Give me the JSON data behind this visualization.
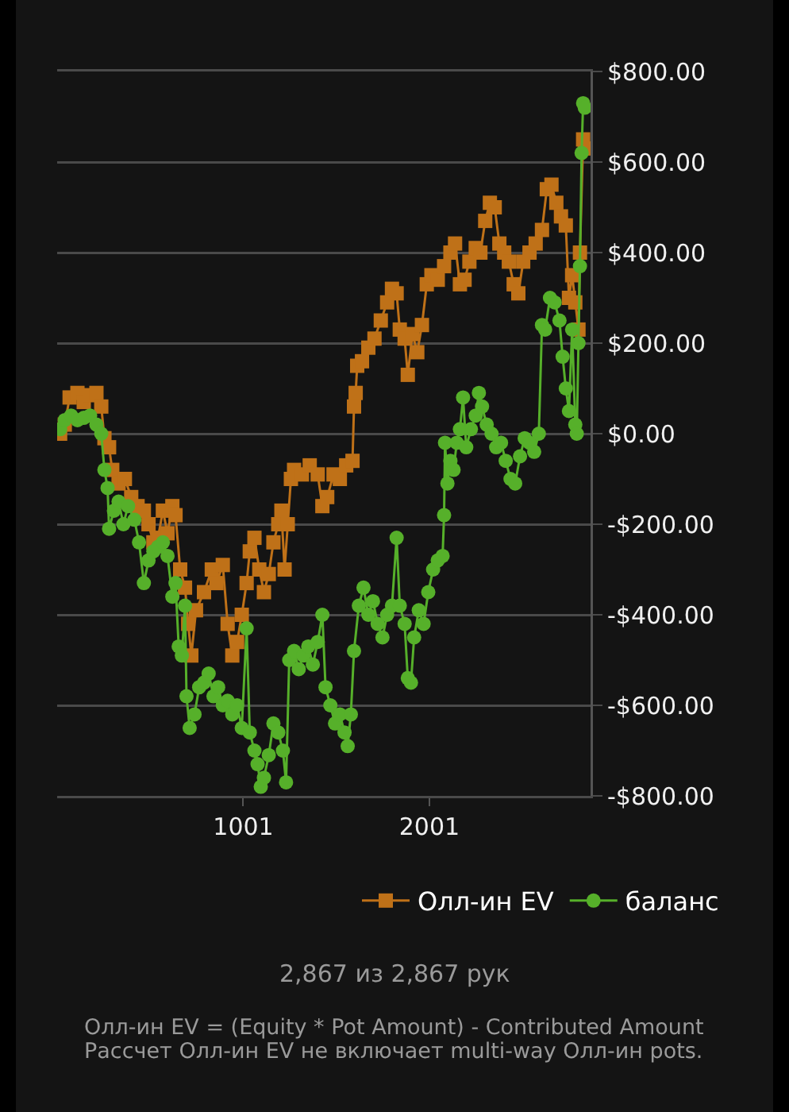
{
  "chart_data": {
    "type": "line",
    "xlim": [
      1,
      2867
    ],
    "xticks": [
      1001,
      2001
    ],
    "ylim": [
      -800,
      800
    ],
    "yticks": [
      {
        "value": -800,
        "label": "-$800.00"
      },
      {
        "value": -600,
        "label": "-$600.00"
      },
      {
        "value": -400,
        "label": "-$400.00"
      },
      {
        "value": -200,
        "label": "-$200.00"
      },
      {
        "value": 0,
        "label": "$0.00"
      },
      {
        "value": 200,
        "label": "$200.00"
      },
      {
        "value": 400,
        "label": "$400.00"
      },
      {
        "value": 600,
        "label": "$600.00"
      },
      {
        "value": 800,
        "label": "$800.00"
      }
    ],
    "grid": "y",
    "legend": "bottom right",
    "annotations": [
      "2,867 из 2,867 рук",
      "Олл-ин EV = (Equity * Pot Amount) - Contributed Amount",
      "Рассчет Олл-ин EV не включает multi-way Олл-ин pots."
    ],
    "series": [
      {
        "name": "Олл-ин EV",
        "color": "#bf7118",
        "marker": "square",
        "x": [
          17,
          42,
          68,
          110,
          144,
          178,
          212,
          238,
          255,
          280,
          297,
          331,
          365,
          399,
          433,
          467,
          492,
          518,
          543,
          569,
          594,
          620,
          637,
          662,
          688,
          705,
          722,
          747,
          790,
          832,
          857,
          891,
          917,
          942,
          968,
          993,
          1019,
          1036,
          1061,
          1087,
          1112,
          1138,
          1163,
          1189,
          1206,
          1223,
          1240,
          1257,
          1274,
          1316,
          1358,
          1401,
          1426,
          1452,
          1486,
          1520,
          1554,
          1588,
          1596,
          1605,
          1613,
          1639,
          1673,
          1706,
          1740,
          1774,
          1800,
          1825,
          1842,
          1868,
          1885,
          1910,
          1936,
          1961,
          1987,
          2012,
          2046,
          2080,
          2114,
          2139,
          2165,
          2190,
          2216,
          2250,
          2275,
          2301,
          2326,
          2352,
          2377,
          2403,
          2428,
          2454,
          2479,
          2505,
          2539,
          2572,
          2606,
          2632,
          2657,
          2683,
          2708,
          2734,
          2751,
          2768,
          2785,
          2802,
          2810,
          2827,
          2836
        ],
        "values": [
          0,
          20,
          80,
          90,
          70,
          85,
          90,
          60,
          -10,
          -30,
          -80,
          -110,
          -100,
          -140,
          -160,
          -170,
          -200,
          -240,
          -230,
          -170,
          -220,
          -160,
          -180,
          -300,
          -340,
          -420,
          -490,
          -390,
          -350,
          -300,
          -330,
          -290,
          -420,
          -490,
          -460,
          -400,
          -330,
          -260,
          -230,
          -300,
          -350,
          -310,
          -240,
          -200,
          -170,
          -300,
          -200,
          -100,
          -80,
          -90,
          -70,
          -90,
          -160,
          -140,
          -90,
          -100,
          -70,
          -60,
          60,
          90,
          150,
          160,
          190,
          210,
          250,
          290,
          320,
          310,
          230,
          210,
          130,
          220,
          180,
          240,
          330,
          350,
          340,
          370,
          400,
          420,
          330,
          340,
          380,
          410,
          400,
          470,
          510,
          500,
          420,
          400,
          380,
          330,
          310,
          380,
          400,
          420,
          450,
          540,
          550,
          510,
          480,
          460,
          300,
          350,
          290,
          230,
          400,
          650,
          630
        ]
      },
      {
        "name": "баланс",
        "color": "#56b02a",
        "marker": "circle",
        "x": [
          17,
          42,
          76,
          110,
          144,
          178,
          212,
          238,
          255,
          272,
          280,
          306,
          331,
          357,
          382,
          416,
          441,
          467,
          492,
          518,
          543,
          569,
          594,
          620,
          637,
          654,
          671,
          688,
          696,
          713,
          739,
          764,
          790,
          815,
          841,
          866,
          891,
          917,
          942,
          968,
          993,
          1019,
          1036,
          1061,
          1078,
          1095,
          1112,
          1138,
          1163,
          1189,
          1214,
          1231,
          1248,
          1274,
          1299,
          1324,
          1350,
          1375,
          1401,
          1426,
          1443,
          1469,
          1494,
          1520,
          1545,
          1562,
          1579,
          1596,
          1622,
          1647,
          1673,
          1698,
          1723,
          1749,
          1774,
          1800,
          1825,
          1842,
          1868,
          1885,
          1902,
          1919,
          1944,
          1970,
          1995,
          2021,
          2046,
          2072,
          2080,
          2085,
          2098,
          2114,
          2131,
          2148,
          2165,
          2182,
          2199,
          2224,
          2250,
          2267,
          2284,
          2309,
          2335,
          2360,
          2386,
          2411,
          2437,
          2462,
          2488,
          2513,
          2539,
          2564,
          2589,
          2606,
          2623,
          2649,
          2674,
          2700,
          2717,
          2734,
          2751,
          2768,
          2785,
          2793,
          2802,
          2810,
          2819,
          2827,
          2836
        ],
        "values": [
          10,
          30,
          40,
          30,
          35,
          40,
          20,
          0,
          -80,
          -120,
          -210,
          -170,
          -150,
          -200,
          -160,
          -190,
          -240,
          -330,
          -280,
          -260,
          -250,
          -240,
          -270,
          -360,
          -330,
          -470,
          -490,
          -380,
          -580,
          -650,
          -620,
          -560,
          -550,
          -530,
          -580,
          -560,
          -600,
          -590,
          -620,
          -600,
          -650,
          -430,
          -660,
          -700,
          -730,
          -780,
          -760,
          -710,
          -640,
          -660,
          -700,
          -770,
          -500,
          -480,
          -520,
          -490,
          -470,
          -510,
          -460,
          -400,
          -560,
          -600,
          -640,
          -620,
          -660,
          -690,
          -620,
          -480,
          -380,
          -340,
          -400,
          -370,
          -420,
          -450,
          -400,
          -380,
          -230,
          -380,
          -420,
          -540,
          -550,
          -450,
          -390,
          -420,
          -350,
          -300,
          -280,
          -270,
          -180,
          -20,
          -110,
          -60,
          -80,
          -20,
          10,
          80,
          -30,
          10,
          40,
          90,
          60,
          20,
          0,
          -30,
          -20,
          -60,
          -100,
          -110,
          -50,
          -10,
          -20,
          -40,
          0,
          240,
          230,
          300,
          290,
          250,
          170,
          100,
          50,
          230,
          20,
          0,
          200,
          370,
          620,
          730,
          720
        ]
      }
    ]
  }
}
